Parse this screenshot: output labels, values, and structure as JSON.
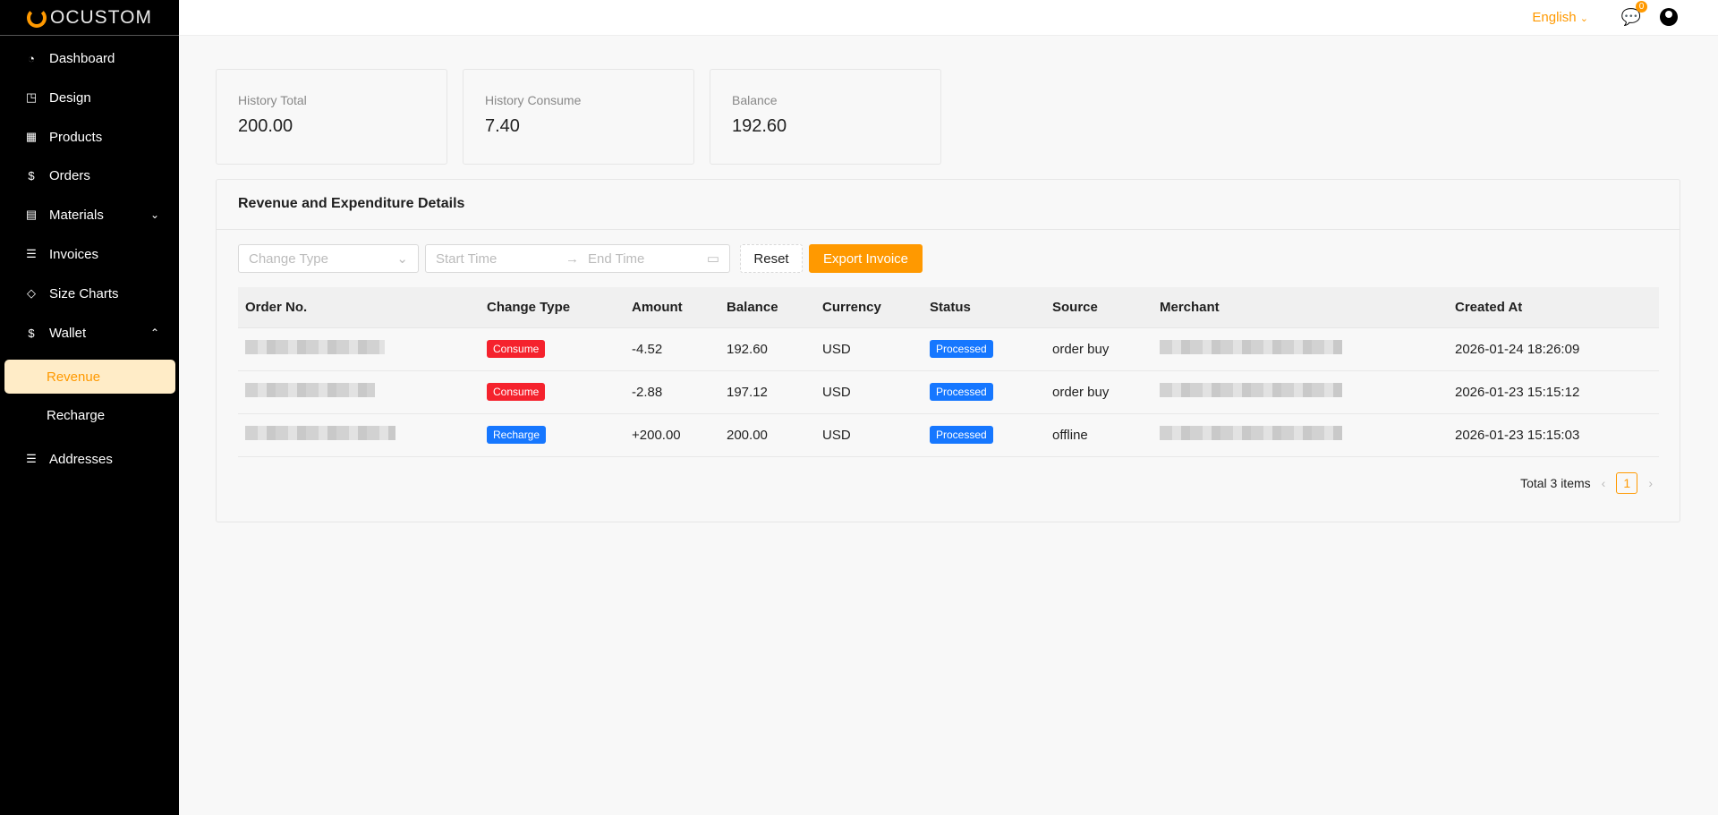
{
  "brand": {
    "name": "OCUSTOM",
    "accent": "#ff9900"
  },
  "sidebar": {
    "items": [
      {
        "label": "Dashboard",
        "icon": "dashboard-icon"
      },
      {
        "label": "Design",
        "icon": "design-icon"
      },
      {
        "label": "Products",
        "icon": "products-icon"
      },
      {
        "label": "Orders",
        "icon": "dollar-icon"
      },
      {
        "label": "Materials",
        "icon": "file-image-icon"
      },
      {
        "label": "Invoices",
        "icon": "list-icon"
      },
      {
        "label": "Size Charts",
        "icon": "tag-icon"
      },
      {
        "label": "Wallet",
        "icon": "dollar-icon"
      },
      {
        "label": "Revenue",
        "active": true
      },
      {
        "label": "Recharge"
      },
      {
        "label": "Addresses",
        "icon": "list-icon"
      }
    ]
  },
  "topbar": {
    "language": "English",
    "notification_count": "0"
  },
  "summary": [
    {
      "label": "History Total",
      "value": "200.00"
    },
    {
      "label": "History Consume",
      "value": "7.40"
    },
    {
      "label": "Balance",
      "value": "192.60"
    }
  ],
  "details": {
    "title": "Revenue and Expenditure Details",
    "filters": {
      "change_type_placeholder": "Change Type",
      "start_placeholder": "Start Time",
      "end_placeholder": "End Time",
      "reset": "Reset",
      "export": "Export Invoice"
    },
    "columns": [
      "Order No.",
      "Change Type",
      "Amount",
      "Balance",
      "Currency",
      "Status",
      "Source",
      "Merchant",
      "Created At"
    ],
    "rows": [
      {
        "type": "Consume",
        "type_color": "#f5222d",
        "amount": "-4.52",
        "balance": "192.60",
        "currency": "USD",
        "status": "Processed",
        "source": "order buy",
        "created": "2026-01-24 18:26:09"
      },
      {
        "type": "Consume",
        "type_color": "#f5222d",
        "amount": "-2.88",
        "balance": "197.12",
        "currency": "USD",
        "status": "Processed",
        "source": "order buy",
        "created": "2026-01-23 15:15:12"
      },
      {
        "type": "Recharge",
        "type_color": "#1677ff",
        "amount": "+200.00",
        "balance": "200.00",
        "currency": "USD",
        "status": "Processed",
        "source": "offline",
        "created": "2026-01-23 15:15:03"
      }
    ],
    "pagination": {
      "total": "Total 3 items",
      "page": "1"
    }
  }
}
